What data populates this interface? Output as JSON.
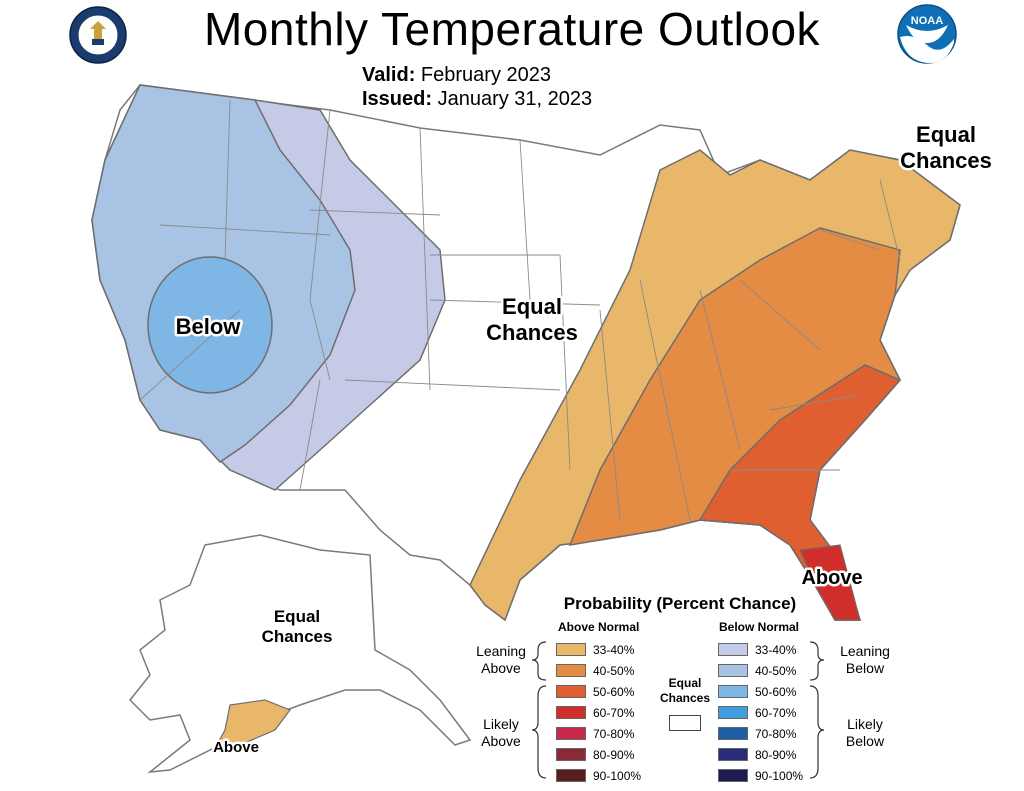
{
  "header": {
    "title": "Monthly Temperature Outlook",
    "valid_label": "Valid:",
    "valid_value": "February 2023",
    "issued_label": "Issued:",
    "issued_value": "January 31, 2023",
    "noaa_logo_text": "NOAA"
  },
  "map_labels": {
    "west_below": "Below",
    "central_ec_1": "Equal",
    "central_ec_2": "Chances",
    "ne_ec_1": "Equal",
    "ne_ec_2": "Chances",
    "se_above": "Above",
    "ak_ec_1": "Equal",
    "ak_ec_2": "Chances",
    "ak_above": "Above"
  },
  "legend": {
    "title": "Probability (Percent Chance)",
    "above_header": "Above Normal",
    "below_header": "Below Normal",
    "equal_chances_1": "Equal",
    "equal_chances_2": "Chances",
    "leaning_above_1": "Leaning",
    "leaning_above_2": "Above",
    "likely_above_1": "Likely",
    "likely_above_2": "Above",
    "leaning_below_1": "Leaning",
    "leaning_below_2": "Below",
    "likely_below_1": "Likely",
    "likely_below_2": "Below",
    "above": [
      {
        "label": "33-40%",
        "color": "#e8b76a"
      },
      {
        "label": "40-50%",
        "color": "#e48b44"
      },
      {
        "label": "50-60%",
        "color": "#df5f30"
      },
      {
        "label": "60-70%",
        "color": "#d02e2a"
      },
      {
        "label": "70-80%",
        "color": "#c8284a"
      },
      {
        "label": "80-90%",
        "color": "#8b2a35"
      },
      {
        "label": "90-100%",
        "color": "#5a1d1f"
      }
    ],
    "below": [
      {
        "label": "33-40%",
        "color": "#c5cbe6"
      },
      {
        "label": "40-50%",
        "color": "#a8c3e4"
      },
      {
        "label": "50-60%",
        "color": "#7eb6e6"
      },
      {
        "label": "60-70%",
        "color": "#3f9edf"
      },
      {
        "label": "70-80%",
        "color": "#1c5fa6"
      },
      {
        "label": "80-90%",
        "color": "#2a2a7a"
      },
      {
        "label": "90-100%",
        "color": "#1e1a52"
      }
    ]
  },
  "colors": {
    "state_border": "#7a7a7a",
    "contour_line": "#6e6e6e"
  }
}
